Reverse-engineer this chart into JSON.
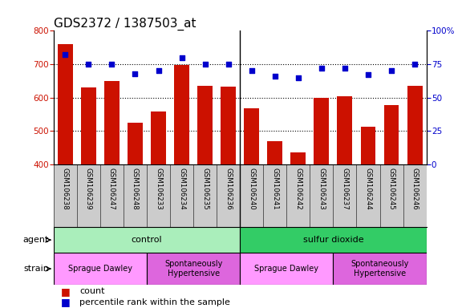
{
  "title": "GDS2372 / 1387503_at",
  "samples": [
    "GSM106238",
    "GSM106239",
    "GSM106247",
    "GSM106248",
    "GSM106233",
    "GSM106234",
    "GSM106235",
    "GSM106236",
    "GSM106240",
    "GSM106241",
    "GSM106242",
    "GSM106243",
    "GSM106237",
    "GSM106244",
    "GSM106245",
    "GSM106246"
  ],
  "counts": [
    760,
    630,
    650,
    525,
    558,
    698,
    635,
    632,
    567,
    468,
    435,
    600,
    603,
    512,
    578,
    635
  ],
  "percentile": [
    82,
    75,
    75,
    68,
    70,
    80,
    75,
    75,
    70,
    66,
    65,
    72,
    72,
    67,
    70,
    75
  ],
  "bar_color": "#cc1100",
  "dot_color": "#0000cc",
  "ylim_left": [
    400,
    800
  ],
  "ylim_right": [
    0,
    100
  ],
  "yticks_left": [
    400,
    500,
    600,
    700,
    800
  ],
  "yticks_right": [
    0,
    25,
    50,
    75,
    100
  ],
  "grid_lines": [
    500,
    600,
    700
  ],
  "xticklabel_bg": "#cccccc",
  "agent_groups": [
    {
      "label": "control",
      "start": 0,
      "end": 8,
      "color": "#aaeebb"
    },
    {
      "label": "sulfur dioxide",
      "start": 8,
      "end": 16,
      "color": "#33cc66"
    }
  ],
  "strain_groups": [
    {
      "label": "Sprague Dawley",
      "start": 0,
      "end": 4,
      "color": "#ff99ff"
    },
    {
      "label": "Spontaneously\nHypertensive",
      "start": 4,
      "end": 8,
      "color": "#dd66dd"
    },
    {
      "label": "Sprague Dawley",
      "start": 8,
      "end": 12,
      "color": "#ff99ff"
    },
    {
      "label": "Spontaneously\nHypertensive",
      "start": 12,
      "end": 16,
      "color": "#dd66dd"
    }
  ],
  "agent_label": "agent",
  "strain_label": "strain",
  "legend_count_label": "count",
  "legend_pct_label": "percentile rank within the sample",
  "title_fontsize": 11,
  "tick_fontsize": 7.5,
  "label_fontsize": 8,
  "bar_width": 0.65,
  "group_divider": 7.5
}
